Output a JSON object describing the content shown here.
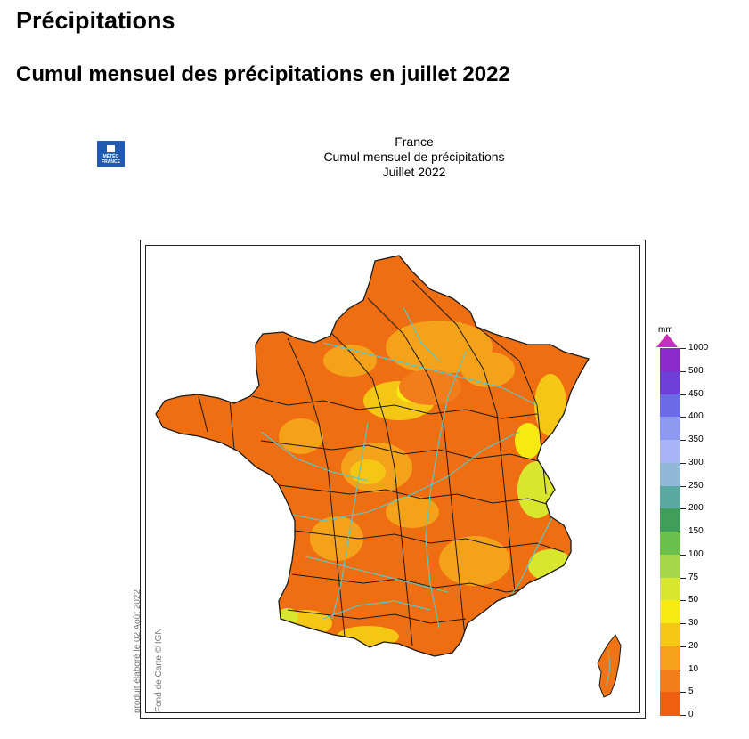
{
  "page": {
    "heading": "Précipitations",
    "subheading": "Cumul mensuel des précipitations en juillet 2022"
  },
  "map": {
    "logo_text_1": "MÉTÉO",
    "logo_text_2": "FRANCE",
    "title_line1": "France",
    "title_line2": "Cumul mensuel de précipitations",
    "title_line3": "Juillet 2022",
    "credit_1": "produit élaboré le 02 Août 2022",
    "credit_2": "Fond de Carte © IGN",
    "legend": {
      "unit": "mm",
      "ticks": [
        "1000",
        "500",
        "450",
        "400",
        "350",
        "300",
        "250",
        "200",
        "150",
        "100",
        "75",
        "50",
        "30",
        "20",
        "10",
        "5",
        "0"
      ],
      "colors": [
        "#c92db9",
        "#8a2bc9",
        "#6d3fd8",
        "#6b6be8",
        "#8d9af0",
        "#a8b4f5",
        "#8fb9d6",
        "#5aa9a0",
        "#3e9e5a",
        "#6bbf4b",
        "#a6d64a",
        "#d9e62e",
        "#f6ea10",
        "#f4c714",
        "#f4a21a",
        "#f27d1b",
        "#ef5f12"
      ]
    },
    "colors": {
      "background": "#ffffff",
      "land": "#f07316",
      "rivers": "#5fc6bd",
      "borders": "#1a1a1a",
      "logo": "#1f5bb0"
    }
  }
}
